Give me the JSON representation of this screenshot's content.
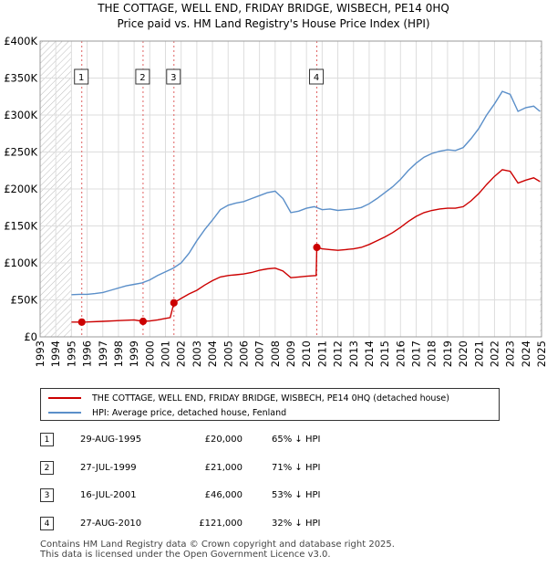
{
  "title_line1": "THE COTTAGE, WELL END, FRIDAY BRIDGE, WISBECH, PE14 0HQ",
  "title_line2": "Price paid vs. HM Land Registry's House Price Index (HPI)",
  "legend": {
    "property_label": "THE COTTAGE, WELL END, FRIDAY BRIDGE, WISBECH, PE14 0HQ (detached house)",
    "hpi_label": "HPI: Average price, detached house, Fenland",
    "property_color": "#cc0000",
    "hpi_color": "#5b8fc9"
  },
  "sales": [
    {
      "num": "1",
      "date": "29-AUG-1995",
      "price": "£20,000",
      "hpi": "65% ↓ HPI"
    },
    {
      "num": "2",
      "date": "27-JUL-1999",
      "price": "£21,000",
      "hpi": "71% ↓ HPI"
    },
    {
      "num": "3",
      "date": "16-JUL-2001",
      "price": "£46,000",
      "hpi": "53% ↓ HPI"
    },
    {
      "num": "4",
      "date": "27-AUG-2010",
      "price": "£121,000",
      "hpi": "32% ↓ HPI"
    }
  ],
  "footer_line1": "Contains HM Land Registry data © Crown copyright and database right 2025.",
  "footer_line2": "This data is licensed under the Open Government Licence v3.0.",
  "chart_data": {
    "type": "line",
    "title": "Price paid vs. HM Land Registry's House Price Index (HPI)",
    "xlabel": "",
    "ylabel": "",
    "xlim": [
      1993,
      2025
    ],
    "ylim": [
      0,
      400000
    ],
    "grid": true,
    "x_ticks": [
      1993,
      1994,
      1995,
      1996,
      1997,
      1998,
      1999,
      2000,
      2001,
      2002,
      2003,
      2004,
      2005,
      2006,
      2007,
      2008,
      2009,
      2010,
      2011,
      2012,
      2013,
      2014,
      2015,
      2016,
      2017,
      2018,
      2019,
      2020,
      2021,
      2022,
      2023,
      2024,
      2025
    ],
    "y_ticks": [
      0,
      50000,
      100000,
      150000,
      200000,
      250000,
      300000,
      350000,
      400000
    ],
    "y_tick_labels": [
      "£0",
      "£50K",
      "£100K",
      "£150K",
      "£200K",
      "£250K",
      "£300K",
      "£350K",
      "£400K"
    ],
    "hatched_ranges": [
      [
        1993,
        1995.0
      ],
      [
        2024.9,
        2025.0
      ]
    ],
    "series": [
      {
        "name": "HPI: Average price, detached house, Fenland",
        "color": "#5b8fc9",
        "points": [
          [
            1995.0,
            57000
          ],
          [
            1995.5,
            57500
          ],
          [
            1996.0,
            57500
          ],
          [
            1996.5,
            58500
          ],
          [
            1997.0,
            60000
          ],
          [
            1997.5,
            63000
          ],
          [
            1998.0,
            66000
          ],
          [
            1998.5,
            69000
          ],
          [
            1999.0,
            71000
          ],
          [
            1999.5,
            73000
          ],
          [
            2000.0,
            77000
          ],
          [
            2000.5,
            83000
          ],
          [
            2001.0,
            88000
          ],
          [
            2001.5,
            93000
          ],
          [
            2002.0,
            100000
          ],
          [
            2002.5,
            113000
          ],
          [
            2003.0,
            130000
          ],
          [
            2003.5,
            145000
          ],
          [
            2004.0,
            158000
          ],
          [
            2004.5,
            172000
          ],
          [
            2005.0,
            178000
          ],
          [
            2005.5,
            181000
          ],
          [
            2006.0,
            183000
          ],
          [
            2006.5,
            187000
          ],
          [
            2007.0,
            191000
          ],
          [
            2007.5,
            195000
          ],
          [
            2008.0,
            197000
          ],
          [
            2008.5,
            187000
          ],
          [
            2009.0,
            168000
          ],
          [
            2009.5,
            170000
          ],
          [
            2010.0,
            174000
          ],
          [
            2010.5,
            176000
          ],
          [
            2011.0,
            172000
          ],
          [
            2011.5,
            173000
          ],
          [
            2012.0,
            171000
          ],
          [
            2012.5,
            172000
          ],
          [
            2013.0,
            173000
          ],
          [
            2013.5,
            175000
          ],
          [
            2014.0,
            180000
          ],
          [
            2014.5,
            187000
          ],
          [
            2015.0,
            195000
          ],
          [
            2015.5,
            203000
          ],
          [
            2016.0,
            213000
          ],
          [
            2016.5,
            225000
          ],
          [
            2017.0,
            235000
          ],
          [
            2017.5,
            243000
          ],
          [
            2018.0,
            248000
          ],
          [
            2018.5,
            251000
          ],
          [
            2019.0,
            253000
          ],
          [
            2019.5,
            252000
          ],
          [
            2020.0,
            256000
          ],
          [
            2020.5,
            268000
          ],
          [
            2021.0,
            282000
          ],
          [
            2021.5,
            300000
          ],
          [
            2022.0,
            315000
          ],
          [
            2022.5,
            332000
          ],
          [
            2023.0,
            328000
          ],
          [
            2023.5,
            305000
          ],
          [
            2024.0,
            310000
          ],
          [
            2024.5,
            312000
          ],
          [
            2024.9,
            305000
          ]
        ]
      },
      {
        "name": "THE COTTAGE, WELL END, FRIDAY BRIDGE, WISBECH, PE14 0HQ (detached house)",
        "color": "#cc0000",
        "points": [
          [
            1995.0,
            20000
          ],
          [
            1995.66,
            20000
          ],
          [
            1996.0,
            20100
          ],
          [
            1997.0,
            21000
          ],
          [
            1998.0,
            22000
          ],
          [
            1999.0,
            23000
          ],
          [
            1999.57,
            21000
          ],
          [
            2000.0,
            21500
          ],
          [
            2000.5,
            23000
          ],
          [
            2001.0,
            25000
          ],
          [
            2001.3,
            26000
          ],
          [
            2001.54,
            46000
          ],
          [
            2002.0,
            52000
          ],
          [
            2002.5,
            58000
          ],
          [
            2003.0,
            63000
          ],
          [
            2003.5,
            70000
          ],
          [
            2004.0,
            76000
          ],
          [
            2004.5,
            81000
          ],
          [
            2005.0,
            83000
          ],
          [
            2005.5,
            84000
          ],
          [
            2006.0,
            85000
          ],
          [
            2006.5,
            87000
          ],
          [
            2007.0,
            90000
          ],
          [
            2007.5,
            92000
          ],
          [
            2008.0,
            93000
          ],
          [
            2008.5,
            89000
          ],
          [
            2009.0,
            80000
          ],
          [
            2009.5,
            81000
          ],
          [
            2010.0,
            82000
          ],
          [
            2010.62,
            83000
          ],
          [
            2010.66,
            121000
          ],
          [
            2011.0,
            119000
          ],
          [
            2011.5,
            118000
          ],
          [
            2012.0,
            117000
          ],
          [
            2012.5,
            118000
          ],
          [
            2013.0,
            119000
          ],
          [
            2013.5,
            121000
          ],
          [
            2014.0,
            125000
          ],
          [
            2014.5,
            130000
          ],
          [
            2015.0,
            135000
          ],
          [
            2015.5,
            141000
          ],
          [
            2016.0,
            148000
          ],
          [
            2016.5,
            156000
          ],
          [
            2017.0,
            163000
          ],
          [
            2017.5,
            168000
          ],
          [
            2018.0,
            171000
          ],
          [
            2018.5,
            173000
          ],
          [
            2019.0,
            174000
          ],
          [
            2019.5,
            174000
          ],
          [
            2020.0,
            176000
          ],
          [
            2020.5,
            184000
          ],
          [
            2021.0,
            194000
          ],
          [
            2021.5,
            206000
          ],
          [
            2022.0,
            217000
          ],
          [
            2022.5,
            226000
          ],
          [
            2023.0,
            224000
          ],
          [
            2023.5,
            208000
          ],
          [
            2024.0,
            212000
          ],
          [
            2024.5,
            215000
          ],
          [
            2024.9,
            210000
          ]
        ]
      }
    ],
    "markers": [
      {
        "label": "1",
        "x": 1995.66,
        "y": 20000
      },
      {
        "label": "2",
        "x": 1999.57,
        "y": 21000
      },
      {
        "label": "3",
        "x": 2001.54,
        "y": 46000
      },
      {
        "label": "4",
        "x": 2010.66,
        "y": 121000
      }
    ]
  }
}
